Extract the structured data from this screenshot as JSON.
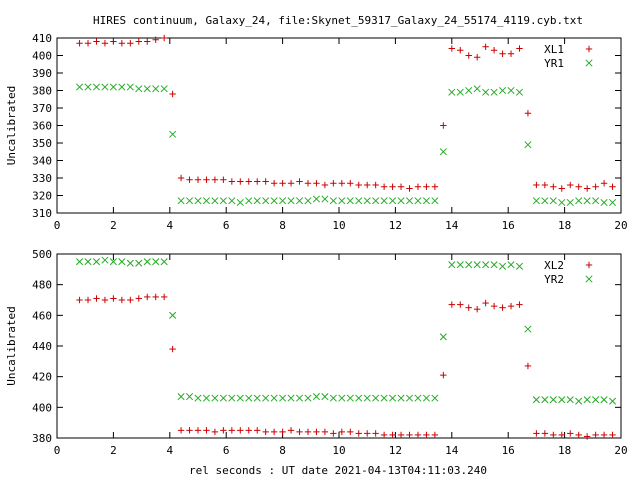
{
  "figure": {
    "title": "HIRES continuum, Galaxy_24, file:Skynet_59317_Galaxy_24_55174_4119.cyb.txt",
    "xlabel": "rel seconds : UT date 2021-04-13T04:11:03.240"
  },
  "colors": {
    "red": "#cc0000",
    "green": "#22aa22"
  },
  "chart_data": [
    {
      "type": "scatter",
      "ylabel": "Uncalibrated",
      "xlim": [
        0,
        20
      ],
      "ylim": [
        310,
        410
      ],
      "xticks": [
        0,
        2,
        4,
        6,
        8,
        10,
        12,
        14,
        16,
        18,
        20
      ],
      "yticks": [
        310,
        320,
        330,
        340,
        350,
        360,
        370,
        380,
        390,
        400,
        410
      ],
      "legend_position": "top-right",
      "grid": false,
      "series": [
        {
          "name": "XL1",
          "marker": "plus",
          "color": "#cc0000",
          "x": [
            0.8,
            1.1,
            1.4,
            1.7,
            2.0,
            2.3,
            2.6,
            2.9,
            3.2,
            3.5,
            3.8,
            4.1,
            4.4,
            4.7,
            5.0,
            5.3,
            5.6,
            5.9,
            6.2,
            6.5,
            6.8,
            7.1,
            7.4,
            7.7,
            8.0,
            8.3,
            8.6,
            8.9,
            9.2,
            9.5,
            9.8,
            10.1,
            10.4,
            10.7,
            11.0,
            11.3,
            11.6,
            11.9,
            12.2,
            12.5,
            12.8,
            13.1,
            13.4,
            13.7,
            14.0,
            14.3,
            14.6,
            14.9,
            15.2,
            15.5,
            15.8,
            16.1,
            16.4,
            16.7,
            17.0,
            17.3,
            17.6,
            17.9,
            18.2,
            18.5,
            18.8,
            19.1,
            19.4,
            19.7
          ],
          "y": [
            407,
            407,
            408,
            407,
            408,
            407,
            407,
            408,
            408,
            409,
            410,
            378,
            330,
            329,
            329,
            329,
            329,
            329,
            328,
            328,
            328,
            328,
            328,
            327,
            327,
            327,
            328,
            327,
            327,
            326,
            327,
            327,
            327,
            326,
            326,
            326,
            325,
            325,
            325,
            324,
            325,
            325,
            325,
            360,
            404,
            403,
            400,
            399,
            405,
            403,
            401,
            401,
            404,
            367,
            326,
            326,
            325,
            324,
            326,
            325,
            324,
            325,
            327,
            325
          ]
        },
        {
          "name": "YR1",
          "marker": "cross",
          "color": "#22aa22",
          "x": [
            0.8,
            1.1,
            1.4,
            1.7,
            2.0,
            2.3,
            2.6,
            2.9,
            3.2,
            3.5,
            3.8,
            4.1,
            4.4,
            4.7,
            5.0,
            5.3,
            5.6,
            5.9,
            6.2,
            6.5,
            6.8,
            7.1,
            7.4,
            7.7,
            8.0,
            8.3,
            8.6,
            8.9,
            9.2,
            9.5,
            9.8,
            10.1,
            10.4,
            10.7,
            11.0,
            11.3,
            11.6,
            11.9,
            12.2,
            12.5,
            12.8,
            13.1,
            13.4,
            13.7,
            14.0,
            14.3,
            14.6,
            14.9,
            15.2,
            15.5,
            15.8,
            16.1,
            16.4,
            16.7,
            17.0,
            17.3,
            17.6,
            17.9,
            18.2,
            18.5,
            18.8,
            19.1,
            19.4,
            19.7
          ],
          "y": [
            382,
            382,
            382,
            382,
            382,
            382,
            382,
            381,
            381,
            381,
            381,
            355,
            317,
            317,
            317,
            317,
            317,
            317,
            317,
            316,
            317,
            317,
            317,
            317,
            317,
            317,
            317,
            317,
            318,
            318,
            317,
            317,
            317,
            317,
            317,
            317,
            317,
            317,
            317,
            317,
            317,
            317,
            317,
            345,
            379,
            379,
            380,
            381,
            379,
            379,
            380,
            380,
            379,
            349,
            317,
            317,
            317,
            316,
            316,
            317,
            317,
            317,
            316,
            316
          ]
        }
      ]
    },
    {
      "type": "scatter",
      "ylabel": "Uncalibrated",
      "xlim": [
        0,
        20
      ],
      "ylim": [
        380,
        500
      ],
      "xticks": [
        0,
        2,
        4,
        6,
        8,
        10,
        12,
        14,
        16,
        18,
        20
      ],
      "yticks": [
        380,
        400,
        420,
        440,
        460,
        480,
        500
      ],
      "legend_position": "top-right",
      "grid": false,
      "series": [
        {
          "name": "XL2",
          "marker": "plus",
          "color": "#cc0000",
          "x": [
            0.8,
            1.1,
            1.4,
            1.7,
            2.0,
            2.3,
            2.6,
            2.9,
            3.2,
            3.5,
            3.8,
            4.1,
            4.4,
            4.7,
            5.0,
            5.3,
            5.6,
            5.9,
            6.2,
            6.5,
            6.8,
            7.1,
            7.4,
            7.7,
            8.0,
            8.3,
            8.6,
            8.9,
            9.2,
            9.5,
            9.8,
            10.1,
            10.4,
            10.7,
            11.0,
            11.3,
            11.6,
            11.9,
            12.2,
            12.5,
            12.8,
            13.1,
            13.4,
            13.7,
            14.0,
            14.3,
            14.6,
            14.9,
            15.2,
            15.5,
            15.8,
            16.1,
            16.4,
            16.7,
            17.0,
            17.3,
            17.6,
            17.9,
            18.2,
            18.5,
            18.8,
            19.1,
            19.4,
            19.7
          ],
          "y": [
            470,
            470,
            471,
            470,
            471,
            470,
            470,
            471,
            472,
            472,
            472,
            438,
            385,
            385,
            385,
            385,
            384,
            385,
            385,
            385,
            385,
            385,
            384,
            384,
            384,
            385,
            384,
            384,
            384,
            384,
            383,
            384,
            384,
            383,
            383,
            383,
            382,
            382,
            382,
            382,
            382,
            382,
            382,
            421,
            467,
            467,
            465,
            464,
            468,
            466,
            465,
            466,
            467,
            427,
            383,
            383,
            382,
            382,
            383,
            382,
            381,
            382,
            382,
            382
          ]
        },
        {
          "name": "YR2",
          "marker": "cross",
          "color": "#22aa22",
          "x": [
            0.8,
            1.1,
            1.4,
            1.7,
            2.0,
            2.3,
            2.6,
            2.9,
            3.2,
            3.5,
            3.8,
            4.1,
            4.4,
            4.7,
            5.0,
            5.3,
            5.6,
            5.9,
            6.2,
            6.5,
            6.8,
            7.1,
            7.4,
            7.7,
            8.0,
            8.3,
            8.6,
            8.9,
            9.2,
            9.5,
            9.8,
            10.1,
            10.4,
            10.7,
            11.0,
            11.3,
            11.6,
            11.9,
            12.2,
            12.5,
            12.8,
            13.1,
            13.4,
            13.7,
            14.0,
            14.3,
            14.6,
            14.9,
            15.2,
            15.5,
            15.8,
            16.1,
            16.4,
            16.7,
            17.0,
            17.3,
            17.6,
            17.9,
            18.2,
            18.5,
            18.8,
            19.1,
            19.4,
            19.7
          ],
          "y": [
            495,
            495,
            495,
            496,
            495,
            495,
            494,
            494,
            495,
            495,
            495,
            460,
            407,
            407,
            406,
            406,
            406,
            406,
            406,
            406,
            406,
            406,
            406,
            406,
            406,
            406,
            406,
            406,
            407,
            407,
            406,
            406,
            406,
            406,
            406,
            406,
            406,
            406,
            406,
            406,
            406,
            406,
            406,
            446,
            493,
            493,
            493,
            493,
            493,
            493,
            492,
            493,
            492,
            451,
            405,
            405,
            405,
            405,
            405,
            404,
            405,
            405,
            405,
            404
          ]
        }
      ]
    }
  ]
}
